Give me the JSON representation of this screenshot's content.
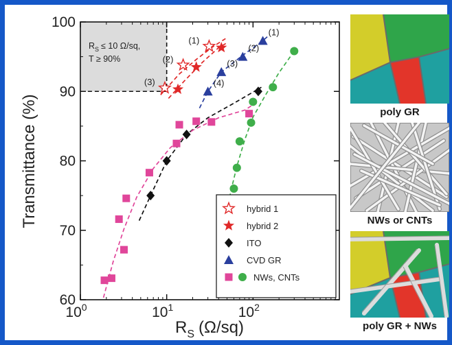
{
  "chart_data": {
    "type": "scatter",
    "x_scale": "log",
    "xlim": [
      1,
      1000
    ],
    "ylim": [
      60,
      100
    ],
    "xlabel": "R",
    "xlabel_sub": "S",
    "xlabel_unit": "(Ω/sq)",
    "ylabel": "Transmittance (%)",
    "x_ticks": [
      {
        "value": 1,
        "base": "10",
        "exp": "0"
      },
      {
        "value": 10,
        "base": "10",
        "exp": "1"
      },
      {
        "value": 100,
        "base": "10",
        "exp": "2"
      }
    ],
    "y_ticks": [
      60,
      70,
      80,
      90,
      100
    ],
    "target_region": {
      "x_max": 10,
      "y_min": 90,
      "line1_prefix": "R",
      "line1_sub": "S",
      "line1_rest": "≤ 10 Ω/sq,",
      "line2": "T ≥ 90%"
    },
    "series": [
      {
        "name": "hybrid 1",
        "marker": "star-open",
        "color": "#e02828",
        "points": [
          [
            9.5,
            90.5
          ],
          [
            15.5,
            93.8
          ],
          [
            31,
            96.5
          ]
        ],
        "point_labels": [
          "(3)",
          "(2)",
          "(1)"
        ]
      },
      {
        "name": "hybrid 2",
        "marker": "star",
        "color": "#e02828",
        "points": [
          [
            13.5,
            90.3
          ],
          [
            22,
            93.5
          ],
          [
            43,
            96.3
          ]
        ]
      },
      {
        "name": "ITO",
        "marker": "diamond",
        "color": "#111111",
        "points": [
          [
            6.5,
            75
          ],
          [
            10,
            80
          ],
          [
            17,
            83.8
          ],
          [
            115,
            90
          ]
        ]
      },
      {
        "name": "CVD GR",
        "marker": "triangle",
        "color": "#2a3f9e",
        "points": [
          [
            30,
            90
          ],
          [
            43,
            92.8
          ],
          [
            76,
            95
          ],
          [
            130,
            97.3
          ]
        ],
        "point_labels": [
          "(4)",
          "(3)",
          "(2)",
          "(1)"
        ]
      },
      {
        "name": "NWs, CNTs",
        "marker": "square",
        "color": "#e0469a",
        "points": [
          [
            1.9,
            62.8
          ],
          [
            2.3,
            63.1
          ],
          [
            2.8,
            71.6
          ],
          [
            3.2,
            67.2
          ],
          [
            3.4,
            74.6
          ],
          [
            6.3,
            78.3
          ],
          [
            13,
            82.5
          ],
          [
            14,
            85.2
          ],
          [
            22,
            85.7
          ],
          [
            33,
            85.6
          ],
          [
            90,
            86.8
          ]
        ]
      },
      {
        "name": "NWs, CNTs",
        "marker": "circle",
        "color": "#3fae4a",
        "points": [
          [
            60,
            76
          ],
          [
            65,
            79
          ],
          [
            70,
            82.8
          ],
          [
            95,
            85.5
          ],
          [
            100,
            88.5
          ],
          [
            170,
            90.6
          ],
          [
            300,
            95.8
          ]
        ]
      }
    ],
    "fit_curves": [
      {
        "color": "#e02828",
        "points": [
          [
            8.5,
            89.5
          ],
          [
            14,
            92.5
          ],
          [
            22,
            94.6
          ],
          [
            34,
            96.4
          ],
          [
            48,
            97.6
          ]
        ]
      },
      {
        "color": "#e02828",
        "points": [
          [
            10.5,
            89.0
          ],
          [
            16,
            91.5
          ],
          [
            26,
            94.2
          ],
          [
            40,
            96.3
          ],
          [
            50,
            97.0
          ]
        ]
      },
      {
        "color": "#111111",
        "points": [
          [
            4.8,
            71.4
          ],
          [
            6.5,
            75
          ],
          [
            10,
            80
          ],
          [
            17,
            83.8
          ],
          [
            30,
            86.2
          ],
          [
            60,
            88.3
          ],
          [
            125,
            90.6
          ]
        ]
      },
      {
        "color": "#2a3f9e",
        "points": [
          [
            24,
            87.6
          ],
          [
            30,
            90
          ],
          [
            43,
            92.8
          ],
          [
            76,
            95.2
          ],
          [
            130,
            97.3
          ],
          [
            150,
            98.0
          ]
        ]
      },
      {
        "color": "#e0469a",
        "points": [
          [
            1.85,
            60.3
          ],
          [
            2.4,
            65.5
          ],
          [
            3.2,
            70.2
          ],
          [
            4.5,
            74.8
          ],
          [
            7,
            78.9
          ],
          [
            11,
            81.9
          ],
          [
            20,
            84.4
          ],
          [
            40,
            86.2
          ],
          [
            80,
            87.3
          ],
          [
            110,
            88.4
          ]
        ]
      },
      {
        "color": "#3fae4a",
        "points": [
          [
            48,
            70.8
          ],
          [
            55,
            75.5
          ],
          [
            65,
            79.2
          ],
          [
            80,
            83.0
          ],
          [
            100,
            86.3
          ],
          [
            140,
            89.5
          ],
          [
            200,
            92.7
          ],
          [
            300,
            95.8
          ]
        ]
      }
    ],
    "legend": {
      "position": "bottom-right",
      "items": [
        "hybrid 1",
        "hybrid 2",
        "ITO",
        "CVD GR",
        "NWs, CNTs"
      ]
    }
  },
  "panels": [
    {
      "caption": "poly GR"
    },
    {
      "caption": "NWs or CNTs"
    },
    {
      "caption": "poly GR + NWs"
    }
  ],
  "colors": {
    "red": "#e02828",
    "black": "#111111",
    "blue": "#2a3f9e",
    "pink": "#e0469a",
    "green": "#3fae4a",
    "frame": "#1558c8"
  }
}
